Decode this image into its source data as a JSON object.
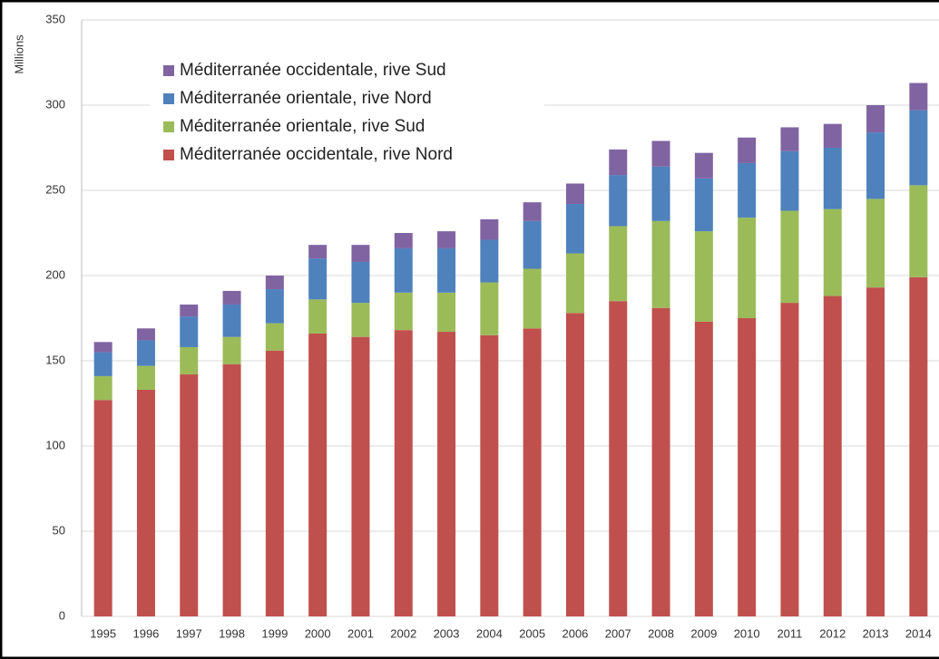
{
  "chart_data": {
    "type": "stacked_bar",
    "y_label": "Millions",
    "categories": [
      "1995",
      "1996",
      "1997",
      "1998",
      "1999",
      "2000",
      "2001",
      "2002",
      "2003",
      "2004",
      "2005",
      "2006",
      "2007",
      "2008",
      "2009",
      "2010",
      "2011",
      "2012",
      "2013",
      "2014"
    ],
    "series": [
      {
        "name": "Méditerranée occidentale, rive Nord",
        "color": "#c0504d",
        "values": [
          127,
          133,
          142,
          148,
          156,
          166,
          164,
          168,
          167,
          165,
          169,
          178,
          185,
          181,
          173,
          175,
          184,
          188,
          193,
          199
        ]
      },
      {
        "name": "Méditerranée orientale, rive Sud",
        "color": "#9bbb59",
        "values": [
          14,
          14,
          16,
          16,
          16,
          20,
          20,
          22,
          23,
          31,
          35,
          35,
          44,
          51,
          53,
          59,
          54,
          51,
          52,
          54
        ]
      },
      {
        "name": "Méditerranée orientale, rive Nord",
        "color": "#4f81bd",
        "values": [
          14,
          15,
          18,
          19,
          20,
          24,
          24,
          26,
          26,
          25,
          28,
          29,
          30,
          32,
          31,
          32,
          35,
          36,
          39,
          44
        ]
      },
      {
        "name": "Méditerranée occidentale, rive Sud",
        "color": "#8064a2",
        "values": [
          6,
          7,
          7,
          8,
          8,
          8,
          10,
          9,
          10,
          12,
          11,
          12,
          15,
          15,
          15,
          15,
          14,
          14,
          16,
          16
        ]
      }
    ],
    "ylim": [
      0,
      350
    ],
    "yticks": [
      0,
      50,
      100,
      150,
      200,
      250,
      300,
      350
    ],
    "grid": true
  }
}
